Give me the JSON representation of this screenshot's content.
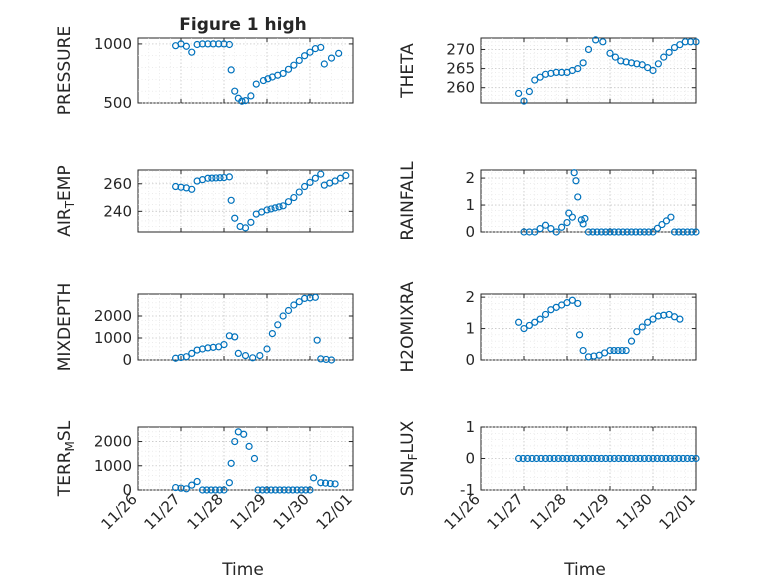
{
  "title": "Figure 1 high",
  "xlabel": "Time",
  "x_tick_labels": [
    "11/26",
    "11/27",
    "11/28",
    "11/29",
    "11/30",
    "12/01"
  ],
  "marker_color": "#0072bd",
  "chart_data": [
    {
      "type": "scatter",
      "ylabel": "PRESSURE",
      "xlim": [
        "11/26",
        "12/01"
      ],
      "ylim": [
        500,
        1050
      ],
      "yticks": [
        500,
        1000
      ],
      "series": [
        {
          "values": [
            [
              "11/26 21:00",
              985
            ],
            [
              "11/27 00:00",
              1000
            ],
            [
              "11/27 03:00",
              980
            ],
            [
              "11/27 06:00",
              930
            ],
            [
              "11/27 09:00",
              995
            ],
            [
              "11/27 12:00",
              1000
            ],
            [
              "11/27 18:00",
              1000
            ],
            [
              "11/28 00:00",
              1000
            ],
            [
              "11/28 03:00",
              995
            ],
            [
              "11/28 04:00",
              780
            ],
            [
              "11/28 06:00",
              600
            ],
            [
              "11/28 08:00",
              540
            ],
            [
              "11/28 10:00",
              515
            ],
            [
              "11/28 12:00",
              520
            ],
            [
              "11/28 15:00",
              560
            ],
            [
              "11/28 18:00",
              660
            ],
            [
              "11/28 22:00",
              690
            ],
            [
              "11/29 03:00",
              720
            ],
            [
              "11/29 09:00",
              750
            ],
            [
              "11/29 15:00",
              820
            ],
            [
              "11/29 21:00",
              900
            ],
            [
              "11/30 03:00",
              960
            ],
            [
              "11/30 06:00",
              970
            ],
            [
              "11/30 08:00",
              830
            ],
            [
              "11/30 12:00",
              880
            ],
            [
              "11/30 16:00",
              920
            ]
          ]
        }
      ]
    },
    {
      "type": "scatter",
      "ylabel": "THETA",
      "xlim": [
        "11/26",
        "12/01"
      ],
      "ylim": [
        256,
        273
      ],
      "yticks": [
        260,
        265,
        270
      ],
      "series": [
        {
          "values": [
            [
              "11/26 21:00",
              258.5
            ],
            [
              "11/27 00:00",
              256.5
            ],
            [
              "11/27 03:00",
              259
            ],
            [
              "11/27 06:00",
              262
            ],
            [
              "11/27 12:00",
              263.5
            ],
            [
              "11/27 18:00",
              264
            ],
            [
              "11/28 00:00",
              264
            ],
            [
              "11/28 06:00",
              265
            ],
            [
              "11/28 09:00",
              266.5
            ],
            [
              "11/28 12:00",
              270
            ],
            [
              "11/28 16:00",
              272.5
            ],
            [
              "11/28 20:00",
              272
            ],
            [
              "11/29 00:00",
              269
            ],
            [
              "11/29 06:00",
              267
            ],
            [
              "11/29 12:00",
              266.5
            ],
            [
              "11/29 18:00",
              266
            ],
            [
              "11/30 00:00",
              264.5
            ],
            [
              "11/30 06:00",
              268
            ],
            [
              "11/30 12:00",
              270.5
            ],
            [
              "11/30 18:00",
              272
            ],
            [
              "12/01 00:00",
              272
            ]
          ]
        }
      ]
    },
    {
      "type": "scatter",
      "ylabel": "AIR_TEMP",
      "xlim": [
        "11/26",
        "12/01"
      ],
      "ylim": [
        225,
        270
      ],
      "yticks": [
        240,
        260
      ],
      "series": [
        {
          "values": [
            [
              "11/26 21:00",
              258
            ],
            [
              "11/27 03:00",
              257
            ],
            [
              "11/27 06:00",
              256
            ],
            [
              "11/27 09:00",
              262
            ],
            [
              "11/27 15:00",
              264
            ],
            [
              "11/28 00:00",
              264.5
            ],
            [
              "11/28 03:00",
              265
            ],
            [
              "11/28 04:00",
              248
            ],
            [
              "11/28 06:00",
              235
            ],
            [
              "11/28 09:00",
              229
            ],
            [
              "11/28 12:00",
              228
            ],
            [
              "11/28 15:00",
              232
            ],
            [
              "11/28 18:00",
              238
            ],
            [
              "11/29 00:00",
              241
            ],
            [
              "11/29 09:00",
              244
            ],
            [
              "11/29 15:00",
              250
            ],
            [
              "11/29 21:00",
              258
            ],
            [
              "11/30 03:00",
              264
            ],
            [
              "11/30 06:00",
              267
            ],
            [
              "11/30 08:00",
              259
            ],
            [
              "11/30 14:00",
              262
            ],
            [
              "11/30 20:00",
              266
            ]
          ]
        }
      ]
    },
    {
      "type": "scatter",
      "ylabel": "RAINFALL",
      "xlim": [
        "11/26",
        "12/01"
      ],
      "ylim": [
        0,
        2.3
      ],
      "yticks": [
        0,
        1,
        2
      ],
      "series": [
        {
          "values": [
            [
              "11/27 00:00",
              0
            ],
            [
              "11/27 06:00",
              0
            ],
            [
              "11/27 12:00",
              0.25
            ],
            [
              "11/27 18:00",
              0
            ],
            [
              "11/28 00:00",
              0.35
            ],
            [
              "11/28 01:00",
              0.7
            ],
            [
              "11/28 03:00",
              0.55
            ],
            [
              "11/28 04:00",
              2.2
            ],
            [
              "11/28 05:00",
              1.9
            ],
            [
              "11/28 06:00",
              1.3
            ],
            [
              "11/28 08:00",
              0.45
            ],
            [
              "11/28 09:00",
              0.3
            ],
            [
              "11/28 10:00",
              0.5
            ],
            [
              "11/28 12:00",
              0
            ],
            [
              "11/29 00:00",
              0
            ],
            [
              "11/29 12:00",
              0
            ],
            [
              "11/30 00:00",
              0
            ],
            [
              "11/30 10:00",
              0.55
            ],
            [
              "11/30 12:00",
              0
            ],
            [
              "12/01 00:00",
              0
            ]
          ]
        }
      ]
    },
    {
      "type": "scatter",
      "ylabel": "MIXDEPTH",
      "xlim": [
        "11/26",
        "12/01"
      ],
      "ylim": [
        0,
        3000
      ],
      "yticks": [
        0,
        1000,
        2000
      ],
      "series": [
        {
          "values": [
            [
              "11/26 21:00",
              80
            ],
            [
              "11/27 03:00",
              150
            ],
            [
              "11/27 06:00",
              300
            ],
            [
              "11/27 09:00",
              450
            ],
            [
              "11/27 15:00",
              550
            ],
            [
              "11/27 21:00",
              600
            ],
            [
              "11/28 00:00",
              700
            ],
            [
              "11/28 03:00",
              1100
            ],
            [
              "11/28 06:00",
              1050
            ],
            [
              "11/28 08:00",
              300
            ],
            [
              "11/28 12:00",
              200
            ],
            [
              "11/28 16:00",
              100
            ],
            [
              "11/28 20:00",
              200
            ],
            [
              "11/29 00:00",
              500
            ],
            [
              "11/29 03:00",
              1200
            ],
            [
              "11/29 09:00",
              2000
            ],
            [
              "11/29 15:00",
              2500
            ],
            [
              "11/29 21:00",
              2800
            ],
            [
              "11/30 03:00",
              2850
            ],
            [
              "11/30 04:00",
              900
            ],
            [
              "11/30 06:00",
              50
            ],
            [
              "11/30 12:00",
              0
            ]
          ]
        }
      ]
    },
    {
      "type": "scatter",
      "ylabel": "H2OMIXRA",
      "xlim": [
        "11/26",
        "12/01"
      ],
      "ylim": [
        0,
        2.1
      ],
      "yticks": [
        0,
        1,
        2
      ],
      "series": [
        {
          "values": [
            [
              "11/26 21:00",
              1.2
            ],
            [
              "11/27 00:00",
              1.0
            ],
            [
              "11/27 03:00",
              1.1
            ],
            [
              "11/27 09:00",
              1.3
            ],
            [
              "11/27 15:00",
              1.6
            ],
            [
              "11/27 21:00",
              1.75
            ],
            [
              "11/28 03:00",
              1.9
            ],
            [
              "11/28 06:00",
              1.8
            ],
            [
              "11/28 07:00",
              0.8
            ],
            [
              "11/28 09:00",
              0.3
            ],
            [
              "11/28 12:00",
              0.1
            ],
            [
              "11/28 18:00",
              0.15
            ],
            [
              "11/29 00:00",
              0.3
            ],
            [
              "11/29 09:00",
              0.3
            ],
            [
              "11/29 15:00",
              0.9
            ],
            [
              "11/29 21:00",
              1.2
            ],
            [
              "11/30 03:00",
              1.4
            ],
            [
              "11/30 09:00",
              1.45
            ],
            [
              "11/30 15:00",
              1.3
            ]
          ]
        }
      ]
    },
    {
      "type": "scatter",
      "ylabel": "TERR_MSL",
      "xlim": [
        "11/26",
        "12/01"
      ],
      "ylim": [
        0,
        2600
      ],
      "yticks": [
        0,
        1000,
        2000
      ],
      "series": [
        {
          "values": [
            [
              "11/26 21:00",
              100
            ],
            [
              "11/27 03:00",
              50
            ],
            [
              "11/27 06:00",
              200
            ],
            [
              "11/27 09:00",
              350
            ],
            [
              "11/27 12:00",
              0
            ],
            [
              "11/28 00:00",
              0
            ],
            [
              "11/28 03:00",
              300
            ],
            [
              "11/28 04:00",
              1100
            ],
            [
              "11/28 06:00",
              2000
            ],
            [
              "11/28 08:00",
              2400
            ],
            [
              "11/28 11:00",
              2300
            ],
            [
              "11/28 14:00",
              1800
            ],
            [
              "11/28 17:00",
              1300
            ],
            [
              "11/28 19:00",
              0
            ],
            [
              "11/29 12:00",
              0
            ],
            [
              "11/30 00:00",
              0
            ],
            [
              "11/30 02:00",
              500
            ],
            [
              "11/30 06:00",
              300
            ],
            [
              "11/30 14:00",
              250
            ]
          ]
        }
      ]
    },
    {
      "type": "scatter",
      "ylabel": "SUN_FLUX",
      "xlim": [
        "11/26",
        "12/01"
      ],
      "ylim": [
        -1,
        1
      ],
      "yticks": [
        -1,
        0,
        1
      ],
      "series": [
        {
          "values": [
            [
              "11/26 21:00",
              0
            ],
            [
              "11/27 12:00",
              0
            ],
            [
              "11/28 00:00",
              0
            ],
            [
              "11/28 12:00",
              0
            ],
            [
              "11/29 00:00",
              0
            ],
            [
              "11/29 12:00",
              0
            ],
            [
              "11/30 00:00",
              0
            ],
            [
              "11/30 12:00",
              0
            ],
            [
              "12/01 00:00",
              0
            ]
          ]
        }
      ]
    }
  ]
}
